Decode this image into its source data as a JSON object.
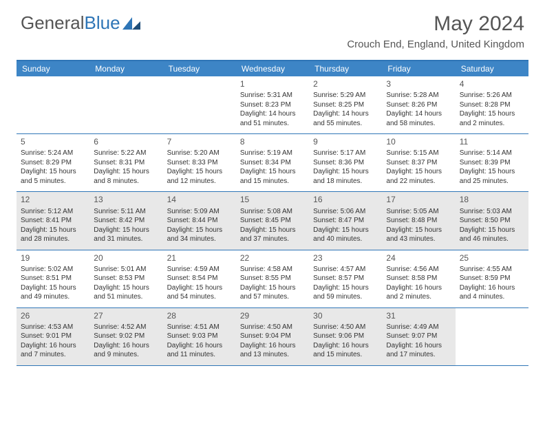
{
  "logo": {
    "part1": "General",
    "part2": "Blue"
  },
  "title": "May 2024",
  "location": "Crouch End, England, United Kingdom",
  "colors": {
    "header_bg": "#3d85c6",
    "border": "#2e75b6",
    "shade": "#e8e8e8",
    "text": "#333333",
    "muted": "#555555"
  },
  "weekdays": [
    "Sunday",
    "Monday",
    "Tuesday",
    "Wednesday",
    "Thursday",
    "Friday",
    "Saturday"
  ],
  "weeks": [
    [
      {
        "num": "",
        "sunrise": "",
        "sunset": "",
        "daylight": ""
      },
      {
        "num": "",
        "sunrise": "",
        "sunset": "",
        "daylight": ""
      },
      {
        "num": "",
        "sunrise": "",
        "sunset": "",
        "daylight": ""
      },
      {
        "num": "1",
        "sunrise": "Sunrise: 5:31 AM",
        "sunset": "Sunset: 8:23 PM",
        "daylight": "Daylight: 14 hours and 51 minutes."
      },
      {
        "num": "2",
        "sunrise": "Sunrise: 5:29 AM",
        "sunset": "Sunset: 8:25 PM",
        "daylight": "Daylight: 14 hours and 55 minutes."
      },
      {
        "num": "3",
        "sunrise": "Sunrise: 5:28 AM",
        "sunset": "Sunset: 8:26 PM",
        "daylight": "Daylight: 14 hours and 58 minutes."
      },
      {
        "num": "4",
        "sunrise": "Sunrise: 5:26 AM",
        "sunset": "Sunset: 8:28 PM",
        "daylight": "Daylight: 15 hours and 2 minutes."
      }
    ],
    [
      {
        "num": "5",
        "sunrise": "Sunrise: 5:24 AM",
        "sunset": "Sunset: 8:29 PM",
        "daylight": "Daylight: 15 hours and 5 minutes."
      },
      {
        "num": "6",
        "sunrise": "Sunrise: 5:22 AM",
        "sunset": "Sunset: 8:31 PM",
        "daylight": "Daylight: 15 hours and 8 minutes."
      },
      {
        "num": "7",
        "sunrise": "Sunrise: 5:20 AM",
        "sunset": "Sunset: 8:33 PM",
        "daylight": "Daylight: 15 hours and 12 minutes."
      },
      {
        "num": "8",
        "sunrise": "Sunrise: 5:19 AM",
        "sunset": "Sunset: 8:34 PM",
        "daylight": "Daylight: 15 hours and 15 minutes."
      },
      {
        "num": "9",
        "sunrise": "Sunrise: 5:17 AM",
        "sunset": "Sunset: 8:36 PM",
        "daylight": "Daylight: 15 hours and 18 minutes."
      },
      {
        "num": "10",
        "sunrise": "Sunrise: 5:15 AM",
        "sunset": "Sunset: 8:37 PM",
        "daylight": "Daylight: 15 hours and 22 minutes."
      },
      {
        "num": "11",
        "sunrise": "Sunrise: 5:14 AM",
        "sunset": "Sunset: 8:39 PM",
        "daylight": "Daylight: 15 hours and 25 minutes."
      }
    ],
    [
      {
        "num": "12",
        "sunrise": "Sunrise: 5:12 AM",
        "sunset": "Sunset: 8:41 PM",
        "daylight": "Daylight: 15 hours and 28 minutes."
      },
      {
        "num": "13",
        "sunrise": "Sunrise: 5:11 AM",
        "sunset": "Sunset: 8:42 PM",
        "daylight": "Daylight: 15 hours and 31 minutes."
      },
      {
        "num": "14",
        "sunrise": "Sunrise: 5:09 AM",
        "sunset": "Sunset: 8:44 PM",
        "daylight": "Daylight: 15 hours and 34 minutes."
      },
      {
        "num": "15",
        "sunrise": "Sunrise: 5:08 AM",
        "sunset": "Sunset: 8:45 PM",
        "daylight": "Daylight: 15 hours and 37 minutes."
      },
      {
        "num": "16",
        "sunrise": "Sunrise: 5:06 AM",
        "sunset": "Sunset: 8:47 PM",
        "daylight": "Daylight: 15 hours and 40 minutes."
      },
      {
        "num": "17",
        "sunrise": "Sunrise: 5:05 AM",
        "sunset": "Sunset: 8:48 PM",
        "daylight": "Daylight: 15 hours and 43 minutes."
      },
      {
        "num": "18",
        "sunrise": "Sunrise: 5:03 AM",
        "sunset": "Sunset: 8:50 PM",
        "daylight": "Daylight: 15 hours and 46 minutes."
      }
    ],
    [
      {
        "num": "19",
        "sunrise": "Sunrise: 5:02 AM",
        "sunset": "Sunset: 8:51 PM",
        "daylight": "Daylight: 15 hours and 49 minutes."
      },
      {
        "num": "20",
        "sunrise": "Sunrise: 5:01 AM",
        "sunset": "Sunset: 8:53 PM",
        "daylight": "Daylight: 15 hours and 51 minutes."
      },
      {
        "num": "21",
        "sunrise": "Sunrise: 4:59 AM",
        "sunset": "Sunset: 8:54 PM",
        "daylight": "Daylight: 15 hours and 54 minutes."
      },
      {
        "num": "22",
        "sunrise": "Sunrise: 4:58 AM",
        "sunset": "Sunset: 8:55 PM",
        "daylight": "Daylight: 15 hours and 57 minutes."
      },
      {
        "num": "23",
        "sunrise": "Sunrise: 4:57 AM",
        "sunset": "Sunset: 8:57 PM",
        "daylight": "Daylight: 15 hours and 59 minutes."
      },
      {
        "num": "24",
        "sunrise": "Sunrise: 4:56 AM",
        "sunset": "Sunset: 8:58 PM",
        "daylight": "Daylight: 16 hours and 2 minutes."
      },
      {
        "num": "25",
        "sunrise": "Sunrise: 4:55 AM",
        "sunset": "Sunset: 8:59 PM",
        "daylight": "Daylight: 16 hours and 4 minutes."
      }
    ],
    [
      {
        "num": "26",
        "sunrise": "Sunrise: 4:53 AM",
        "sunset": "Sunset: 9:01 PM",
        "daylight": "Daylight: 16 hours and 7 minutes."
      },
      {
        "num": "27",
        "sunrise": "Sunrise: 4:52 AM",
        "sunset": "Sunset: 9:02 PM",
        "daylight": "Daylight: 16 hours and 9 minutes."
      },
      {
        "num": "28",
        "sunrise": "Sunrise: 4:51 AM",
        "sunset": "Sunset: 9:03 PM",
        "daylight": "Daylight: 16 hours and 11 minutes."
      },
      {
        "num": "29",
        "sunrise": "Sunrise: 4:50 AM",
        "sunset": "Sunset: 9:04 PM",
        "daylight": "Daylight: 16 hours and 13 minutes."
      },
      {
        "num": "30",
        "sunrise": "Sunrise: 4:50 AM",
        "sunset": "Sunset: 9:06 PM",
        "daylight": "Daylight: 16 hours and 15 minutes."
      },
      {
        "num": "31",
        "sunrise": "Sunrise: 4:49 AM",
        "sunset": "Sunset: 9:07 PM",
        "daylight": "Daylight: 16 hours and 17 minutes."
      },
      {
        "num": "",
        "sunrise": "",
        "sunset": "",
        "daylight": ""
      }
    ]
  ]
}
